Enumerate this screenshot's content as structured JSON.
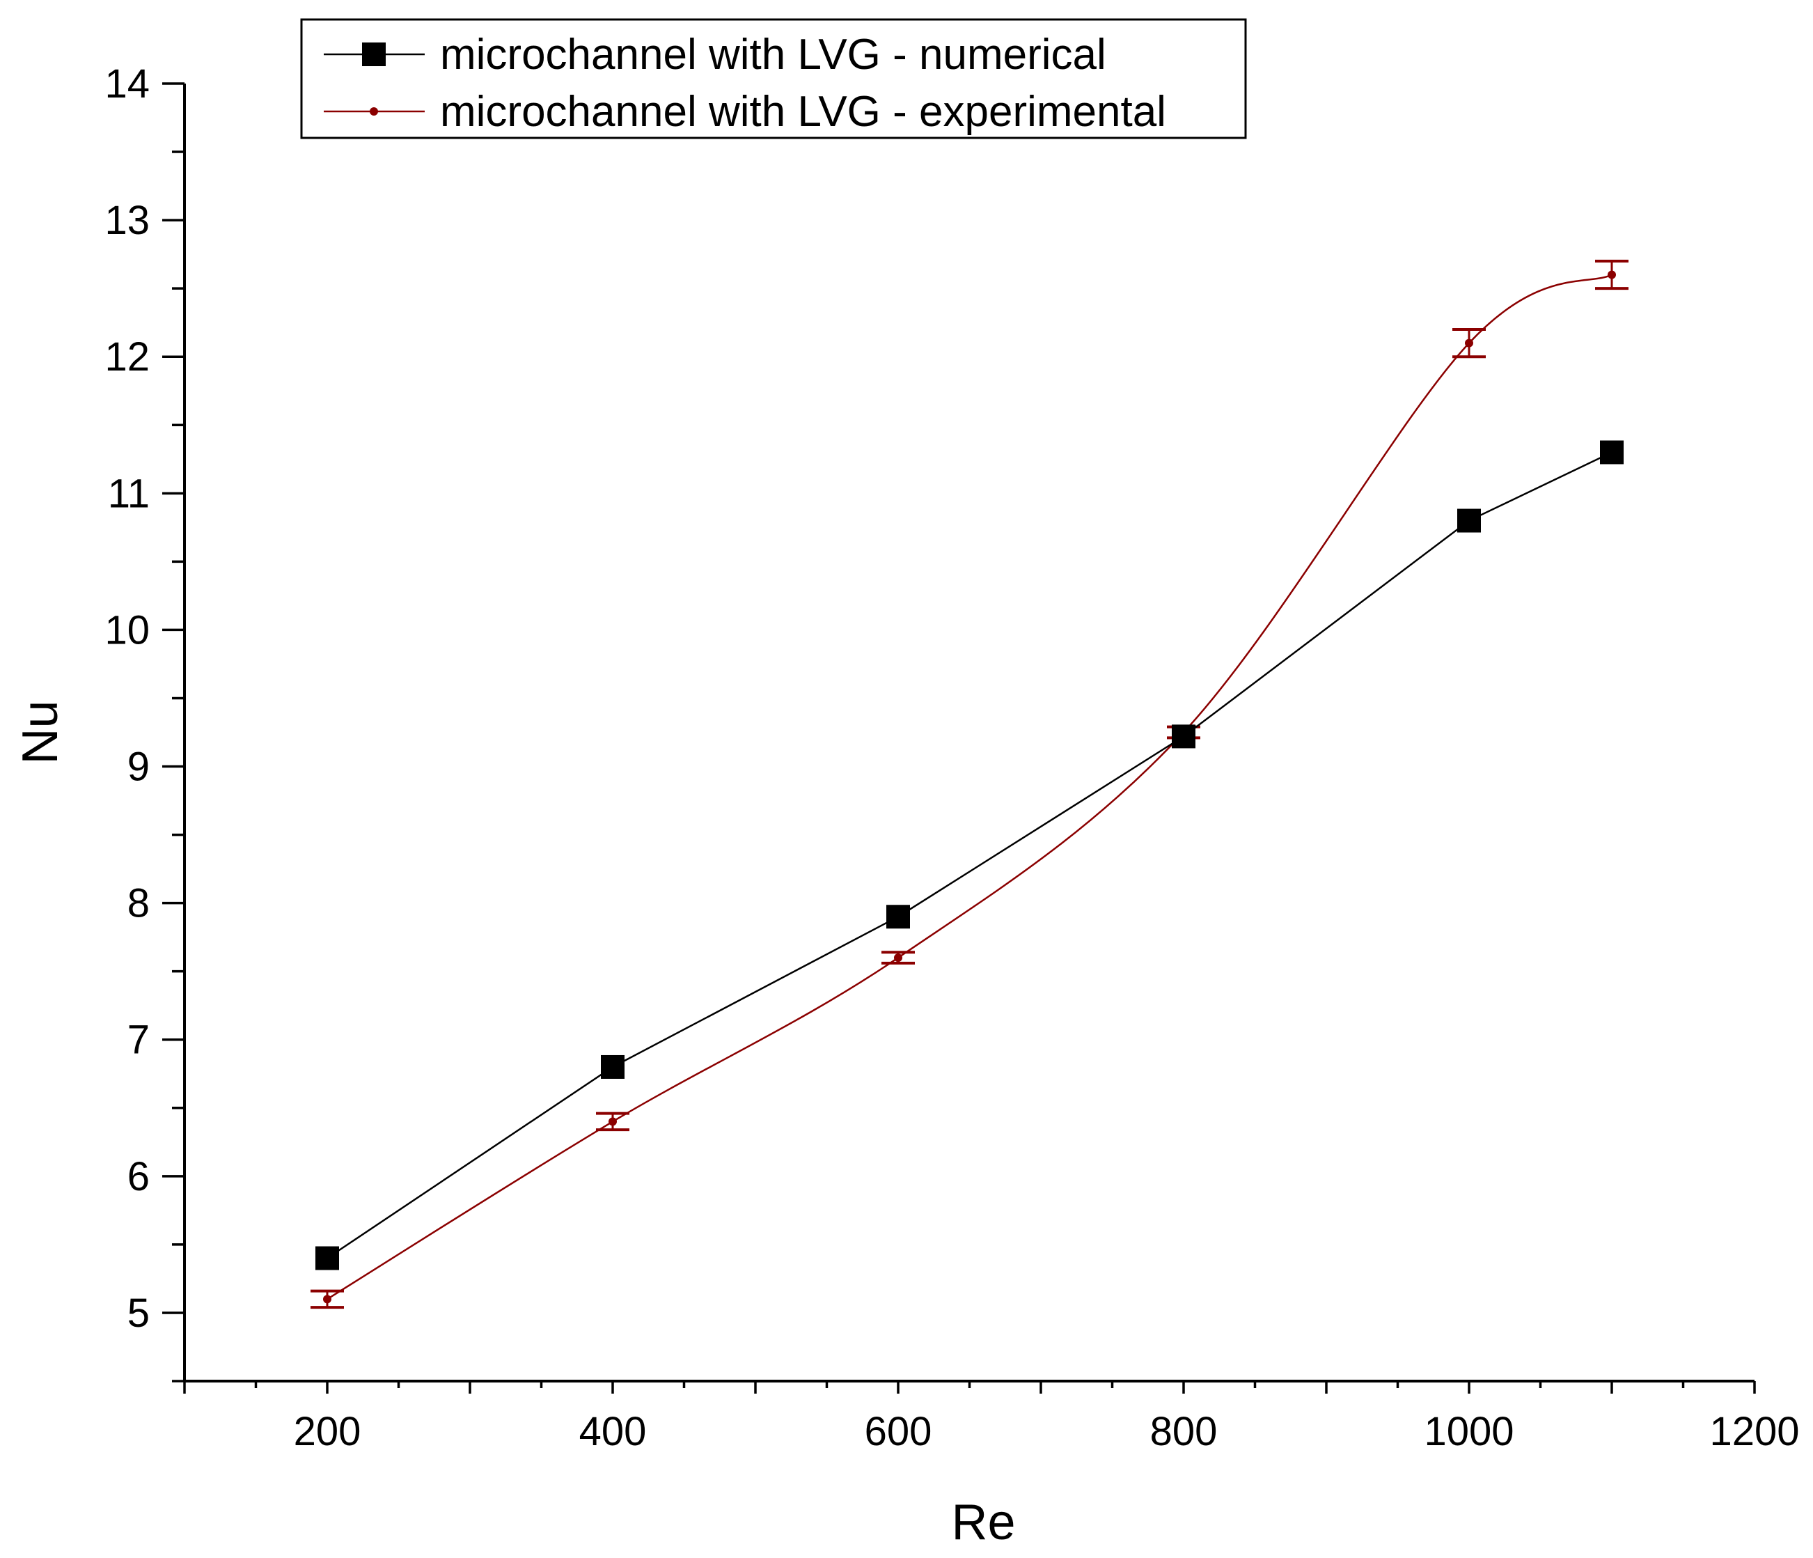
{
  "chart_data": {
    "type": "line",
    "title": "",
    "xlabel": "Re",
    "ylabel": "Nu",
    "xlim": [
      100,
      1200
    ],
    "ylim": [
      4.5,
      14
    ],
    "x_ticks": [
      200,
      400,
      600,
      800,
      1000,
      1200
    ],
    "y_ticks": [
      5,
      6,
      7,
      8,
      9,
      10,
      11,
      12,
      13,
      14
    ],
    "legend_position": "top-left",
    "series": [
      {
        "name": "microchannel with LVG - numerical",
        "color": "#000000",
        "marker": "square",
        "curve": "straight",
        "x": [
          200,
          400,
          600,
          800,
          1000,
          1100
        ],
        "y": [
          5.4,
          6.8,
          7.9,
          9.22,
          10.8,
          11.3
        ]
      },
      {
        "name": "microchannel with LVG - experimental",
        "color": "#8b0000",
        "marker": "dot",
        "curve": "smooth",
        "x": [
          200,
          400,
          600,
          800,
          1000,
          1100
        ],
        "y": [
          5.1,
          6.4,
          7.6,
          9.25,
          12.1,
          12.6
        ],
        "error": [
          0.06,
          0.06,
          0.04,
          0.04,
          0.1,
          0.1
        ]
      }
    ]
  }
}
